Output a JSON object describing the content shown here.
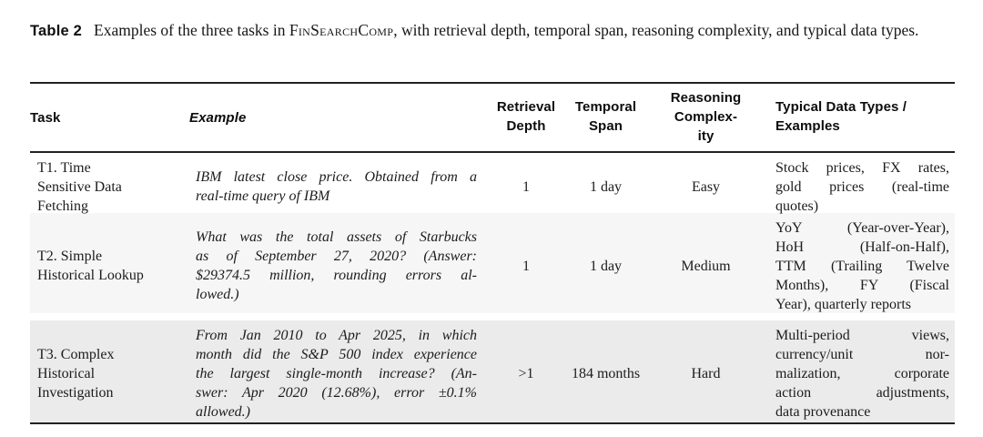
{
  "caption": {
    "label": "Table 2",
    "text_before": "Examples of the three tasks in ",
    "smallcaps": "FinSearchComp",
    "text_after": ", with retrieval depth, temporal span, reasoning complexity, and typical data types."
  },
  "table": {
    "headers": {
      "task": "Task",
      "example": "Example",
      "retrieval_depth": [
        "Retrieval",
        "Depth"
      ],
      "temporal_span": [
        "Temporal",
        "Span"
      ],
      "reasoning_complexity": [
        "Reasoning",
        "Complex-",
        "ity"
      ],
      "typical_data_types": [
        "Typical Data Types /",
        "Examples"
      ]
    },
    "rows": [
      {
        "task": [
          "T1. Time",
          "Sensitive Data",
          "Fetching"
        ],
        "example": [
          "IBM latest close price. Obtained from a",
          "real-time query of IBM"
        ],
        "retrieval_depth": "1",
        "temporal_span": "1 day",
        "reasoning_complexity": "Easy",
        "typical_data_types": [
          "Stock prices, FX rates,",
          "gold prices (real-time",
          "quotes)"
        ]
      },
      {
        "task": [
          "T2. Simple",
          "Historical Lookup"
        ],
        "example": [
          "What was the total assets of Starbucks",
          "as of September 27, 2020? (Answer:",
          "$29374.5 million, rounding errors al-",
          "lowed.)"
        ],
        "retrieval_depth": "1",
        "temporal_span": "1 day",
        "reasoning_complexity": "Medium",
        "typical_data_types": [
          "YoY (Year-over-Year),",
          "HoH (Half-on-Half),",
          "TTM (Trailing Twelve",
          "Months), FY (Fiscal",
          "Year), quarterly reports"
        ]
      },
      {
        "task": [
          "T3. Complex",
          "Historical",
          "Investigation"
        ],
        "example": [
          "From Jan 2010 to Apr 2025, in which",
          "month did the S&P 500 index experience",
          "the largest single-month increase? (An-",
          "swer: Apr 2020 (12.68%), error ±0.1%",
          "allowed.)"
        ],
        "retrieval_depth": ">1",
        "temporal_span": "184 months",
        "reasoning_complexity": "Hard",
        "typical_data_types": [
          "Multi-period views,",
          "currency/unit nor-",
          "malization, corporate",
          "action adjustments,",
          "data provenance"
        ]
      }
    ]
  },
  "colors": {
    "rule": "#222222",
    "row2_bg": "#f6f6f6",
    "row3_bg": "#ebebeb"
  }
}
